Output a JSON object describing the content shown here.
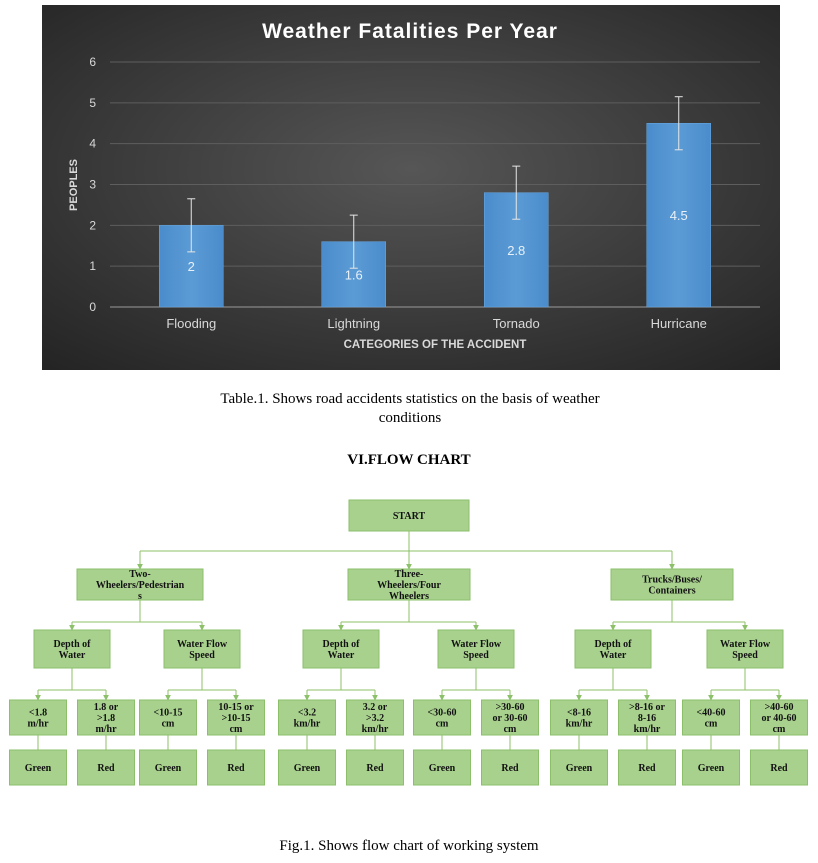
{
  "chart_data": {
    "type": "bar",
    "title": "Weather Fatalities Per Year",
    "xlabel": "CATEGORIES OF THE ACCIDENT",
    "ylabel": "PEOPLES",
    "categories": [
      "Flooding",
      "Lightning",
      "Tornado",
      "Hurricane"
    ],
    "values": [
      2,
      1.6,
      2.8,
      4.5
    ],
    "data_labels": [
      "2",
      "1.6",
      "2.8",
      "4.5"
    ],
    "error_bars": [
      {
        "low": 1.35,
        "high": 2.65
      },
      {
        "low": 0.95,
        "high": 2.25
      },
      {
        "low": 2.15,
        "high": 3.45
      },
      {
        "low": 3.85,
        "high": 5.15
      }
    ],
    "ylim": [
      0,
      6
    ],
    "yticks": [
      "0",
      "1",
      "2",
      "3",
      "4",
      "5",
      "6"
    ],
    "grid": true,
    "colors": {
      "background": "#3a3a3a",
      "bar": "#5b9bd5",
      "text": "#d9d9d9",
      "title": "#ffffff"
    }
  },
  "caption_table": "Table.1. Shows road accidents statistics on the basis of weather conditions",
  "section_heading": "VI.FLOW CHART",
  "flowchart": {
    "start": "START",
    "categories": [
      {
        "label": "Two-Wheelers/Pedestrians",
        "label_lines": [
          "Two-",
          "Wheelers/Pedestrian",
          "s"
        ],
        "criteria": [
          {
            "label": "Depth of Water",
            "label_lines": [
              "Depth of",
              "Water"
            ],
            "conditions": [
              {
                "label": "<1.8 m/hr",
                "label_lines": [
                  "<1.8",
                  "m/hr"
                ],
                "result": "Green"
              },
              {
                "label": "1.8 or >1.8 m/hr",
                "label_lines": [
                  "1.8 or",
                  ">1.8",
                  "m/hr"
                ],
                "result": "Red"
              }
            ]
          },
          {
            "label": "Water Flow Speed",
            "label_lines": [
              "Water Flow",
              "Speed"
            ],
            "conditions": [
              {
                "label": "<10-15 cm",
                "label_lines": [
                  "<10-15",
                  "cm"
                ],
                "result": "Green"
              },
              {
                "label": "10-15 or >10-15 cm",
                "label_lines": [
                  "10-15 or",
                  ">10-15",
                  "cm"
                ],
                "result": "Red"
              }
            ]
          }
        ]
      },
      {
        "label": "Three-Wheelers/Four Wheelers",
        "label_lines": [
          "Three-",
          "Wheelers/Four",
          "Wheelers"
        ],
        "criteria": [
          {
            "label": "Depth of Water",
            "label_lines": [
              "Depth of",
              "Water"
            ],
            "conditions": [
              {
                "label": "<3.2 km/hr",
                "label_lines": [
                  "<3.2",
                  "km/hr"
                ],
                "result": "Green"
              },
              {
                "label": "3.2 or >3.2 km/hr",
                "label_lines": [
                  "3.2 or",
                  ">3.2",
                  "km/hr"
                ],
                "result": "Red"
              }
            ]
          },
          {
            "label": "Water Flow Speed",
            "label_lines": [
              "Water Flow",
              "Speed"
            ],
            "conditions": [
              {
                "label": "<30-60 cm",
                "label_lines": [
                  "<30-60",
                  "cm"
                ],
                "result": "Green"
              },
              {
                "label": ">30-60 or 30-60 cm",
                "label_lines": [
                  ">30-60",
                  "or 30-60",
                  "cm"
                ],
                "result": "Red"
              }
            ]
          }
        ]
      },
      {
        "label": "Trucks/Buses/Containers",
        "label_lines": [
          "Trucks/Buses/",
          "Containers"
        ],
        "criteria": [
          {
            "label": "Depth of Water",
            "label_lines": [
              "Depth of",
              "Water"
            ],
            "conditions": [
              {
                "label": "<8-16 km/hr",
                "label_lines": [
                  "<8-16",
                  "km/hr"
                ],
                "result": "Green"
              },
              {
                "label": ">8-16 or 8-16 km/hr",
                "label_lines": [
                  ">8-16 or",
                  "8-16",
                  "km/hr"
                ],
                "result": "Red"
              }
            ]
          },
          {
            "label": "Water Flow Speed",
            "label_lines": [
              "Water Flow",
              "Speed"
            ],
            "conditions": [
              {
                "label": "<40-60 cm",
                "label_lines": [
                  "<40-60",
                  "cm"
                ],
                "result": "Green"
              },
              {
                "label": ">40-60 or 40-60 cm",
                "label_lines": [
                  ">40-60",
                  "or 40-60",
                  "cm"
                ],
                "result": "Red"
              }
            ]
          }
        ]
      }
    ],
    "colors": {
      "box_fill": "#a9d18e",
      "box_stroke": "#8bbf6a",
      "connector": "#8cc06a"
    }
  },
  "caption_flow": "Fig.1. Shows flow chart of working system"
}
